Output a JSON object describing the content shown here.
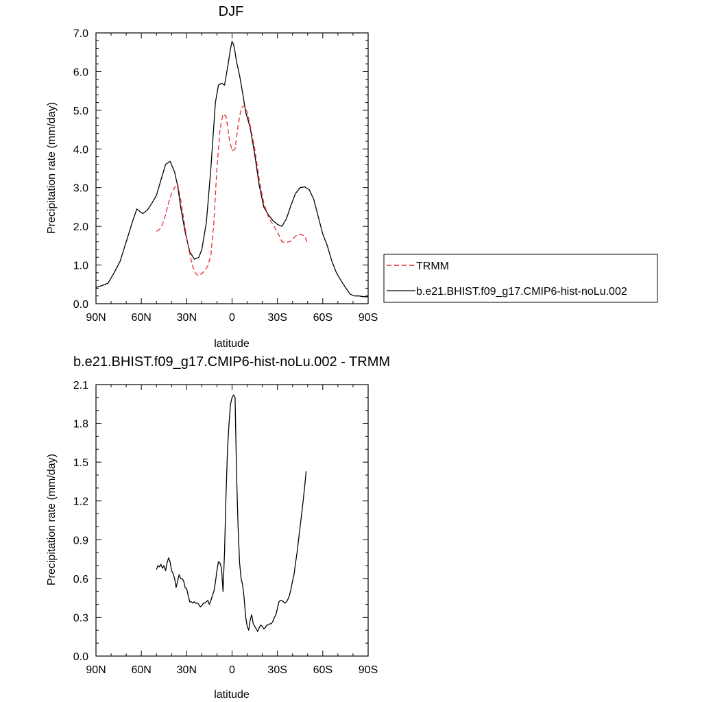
{
  "figure": {
    "legend": {
      "entries": [
        {
          "label": "TRMM",
          "color": "#e8282c",
          "dash": "dashed"
        },
        {
          "label": "b.e21.BHIST.f09_g17.CMIP6-hist-noLu.002",
          "color": "#000000",
          "dash": "solid"
        }
      ],
      "placement": "right of top panel"
    }
  },
  "chart_data": [
    {
      "type": "line",
      "title": "DJF",
      "xlabel": "latitude",
      "ylabel": "Precipitation rate (mm/day)",
      "xlim": [
        90,
        -90
      ],
      "ylim": [
        0,
        7
      ],
      "x_ticks": [
        90,
        60,
        30,
        0,
        -30,
        -60,
        -90
      ],
      "x_tick_labels": [
        "90N",
        "60N",
        "30N",
        "0",
        "30S",
        "60S",
        "90S"
      ],
      "y_ticks": [
        0,
        1,
        2,
        3,
        4,
        5,
        6,
        7
      ],
      "y_tick_labels": [
        "0.0",
        "1.0",
        "2.0",
        "3.0",
        "4.0",
        "5.0",
        "6.0",
        "7.0"
      ],
      "grid": false,
      "series": [
        {
          "name": "b.e21.BHIST.f09_g17.CMIP6-hist-noLu.002",
          "color": "#000000",
          "dash": "solid",
          "x": [
            90,
            86,
            82,
            78,
            74,
            70,
            66,
            63,
            61,
            59,
            56,
            53,
            50,
            47,
            44,
            41,
            38,
            36,
            34,
            31,
            28,
            25,
            22,
            20,
            17,
            14,
            11,
            9,
            7,
            5,
            3,
            1,
            0,
            -1,
            -2,
            -3,
            -5,
            -7,
            -9,
            -12,
            -15,
            -18,
            -21,
            -24,
            -27,
            -30,
            -33,
            -36,
            -39,
            -42,
            -45,
            -48,
            -51,
            -54,
            -57,
            -60,
            -63,
            -66,
            -69,
            -72,
            -75,
            -78,
            -81,
            -84,
            -87,
            -90
          ],
          "y": [
            0.42,
            0.47,
            0.53,
            0.8,
            1.1,
            1.6,
            2.1,
            2.45,
            2.38,
            2.33,
            2.42,
            2.6,
            2.8,
            3.2,
            3.6,
            3.68,
            3.4,
            3.05,
            2.5,
            1.85,
            1.35,
            1.15,
            1.2,
            1.4,
            2.1,
            3.5,
            5.2,
            5.65,
            5.7,
            5.65,
            6.1,
            6.6,
            6.78,
            6.7,
            6.5,
            6.25,
            5.9,
            5.45,
            4.95,
            4.55,
            3.85,
            3.05,
            2.5,
            2.3,
            2.15,
            2.05,
            2.0,
            2.2,
            2.55,
            2.85,
            3.0,
            3.02,
            2.95,
            2.7,
            2.25,
            1.8,
            1.5,
            1.1,
            0.8,
            0.6,
            0.42,
            0.25,
            0.2,
            0.2,
            0.18,
            0.18
          ]
        },
        {
          "name": "TRMM",
          "color": "#e8282c",
          "dash": "dashed",
          "x": [
            50,
            48,
            46,
            44,
            42,
            40,
            38,
            36,
            34,
            32,
            30,
            28,
            26,
            24,
            22,
            20,
            18,
            16,
            14,
            12,
            10,
            8,
            6,
            4,
            2,
            0,
            -2,
            -4,
            -6,
            -8,
            -10,
            -12,
            -15,
            -18,
            -21,
            -24,
            -27,
            -30,
            -33,
            -36,
            -39,
            -42,
            -45,
            -48,
            -50
          ],
          "y": [
            1.87,
            1.92,
            2.05,
            2.3,
            2.6,
            2.85,
            3.0,
            3.1,
            2.7,
            2.2,
            1.7,
            1.3,
            0.95,
            0.78,
            0.72,
            0.78,
            0.85,
            0.98,
            1.25,
            2.1,
            3.5,
            4.5,
            4.9,
            4.85,
            4.3,
            3.95,
            4.0,
            4.6,
            5.05,
            5.12,
            4.95,
            4.6,
            4.0,
            3.2,
            2.6,
            2.25,
            2.05,
            1.85,
            1.6,
            1.58,
            1.62,
            1.75,
            1.8,
            1.75,
            1.55
          ]
        }
      ]
    },
    {
      "type": "line",
      "title": "b.e21.BHIST.f09_g17.CMIP6-hist-noLu.002 - TRMM",
      "xlabel": "latitude",
      "ylabel": "Precipitation rate (mm/day)",
      "xlim": [
        90,
        -90
      ],
      "ylim": [
        0,
        2.1
      ],
      "x_ticks": [
        90,
        60,
        30,
        0,
        -30,
        -60,
        -90
      ],
      "x_tick_labels": [
        "90N",
        "60N",
        "30N",
        "0",
        "30S",
        "60S",
        "90S"
      ],
      "y_ticks": [
        0,
        0.3,
        0.6,
        0.9,
        1.2,
        1.5,
        1.8,
        2.1
      ],
      "y_tick_labels": [
        "0.0",
        "0.3",
        "0.6",
        "0.9",
        "1.2",
        "1.5",
        "1.8",
        "2.1"
      ],
      "grid": false,
      "series": [
        {
          "color": "#000000",
          "dash": "solid",
          "x": [
            50,
            49,
            48,
            47,
            46,
            45,
            44,
            43,
            42,
            41,
            40,
            39,
            38,
            37,
            36,
            35,
            34,
            33,
            32,
            31,
            30,
            29,
            28,
            27,
            26,
            25,
            24,
            23,
            22,
            21,
            20,
            19,
            18,
            17,
            16,
            15,
            14,
            13,
            12,
            11,
            10,
            9,
            8,
            7,
            6,
            5,
            4,
            3,
            2,
            1,
            0,
            -1,
            -2,
            -3,
            -4,
            -5,
            -6,
            -7,
            -8,
            -9,
            -10,
            -11,
            -12,
            -13,
            -14,
            -15,
            -16,
            -17,
            -18,
            -19,
            -20,
            -21,
            -22,
            -23,
            -24,
            -25,
            -26,
            -27,
            -28,
            -29,
            -30,
            -31,
            -32,
            -33,
            -34,
            -35,
            -36,
            -37,
            -38,
            -39,
            -40,
            -41,
            -42,
            -43,
            -44,
            -45,
            -46,
            -47,
            -48,
            -49
          ],
          "y": [
            0.67,
            0.7,
            0.69,
            0.71,
            0.68,
            0.7,
            0.66,
            0.72,
            0.76,
            0.73,
            0.66,
            0.64,
            0.6,
            0.53,
            0.58,
            0.63,
            0.6,
            0.6,
            0.58,
            0.53,
            0.52,
            0.47,
            0.42,
            0.42,
            0.41,
            0.42,
            0.41,
            0.41,
            0.4,
            0.38,
            0.39,
            0.41,
            0.41,
            0.42,
            0.43,
            0.4,
            0.43,
            0.47,
            0.5,
            0.57,
            0.66,
            0.73,
            0.72,
            0.68,
            0.5,
            0.8,
            1.25,
            1.6,
            1.8,
            1.95,
            2.0,
            2.02,
            2.0,
            1.4,
            1.0,
            0.72,
            0.6,
            0.55,
            0.45,
            0.3,
            0.23,
            0.2,
            0.28,
            0.32,
            0.25,
            0.23,
            0.21,
            0.19,
            0.22,
            0.24,
            0.23,
            0.21,
            0.22,
            0.24,
            0.24,
            0.25,
            0.25,
            0.27,
            0.3,
            0.32,
            0.37,
            0.42,
            0.43,
            0.43,
            0.42,
            0.41,
            0.42,
            0.44,
            0.47,
            0.52,
            0.58,
            0.63,
            0.72,
            0.8,
            0.9,
            1.0,
            1.1,
            1.2,
            1.31,
            1.43
          ]
        }
      ]
    }
  ]
}
